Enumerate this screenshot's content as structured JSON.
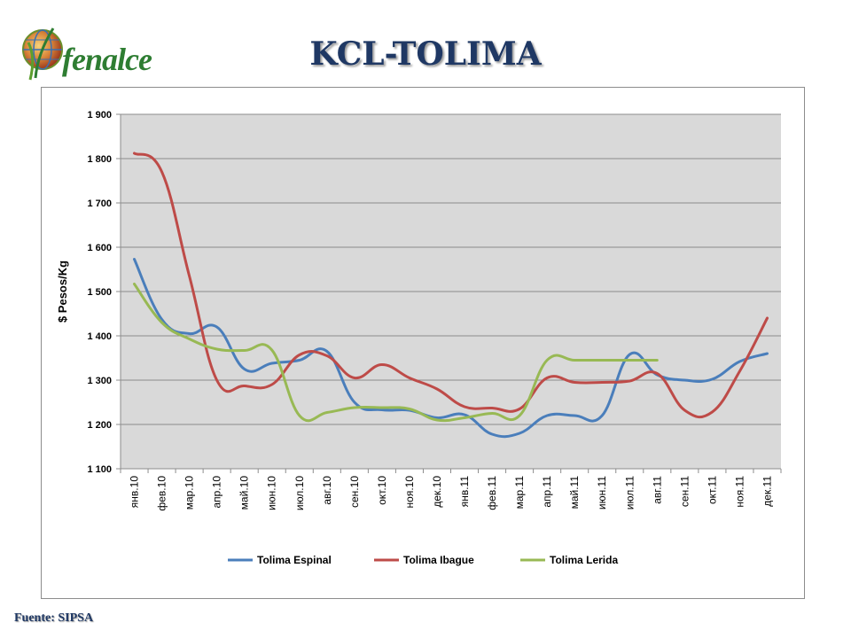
{
  "logo": {
    "text": "fenalce"
  },
  "title": "KCL-TOLIMA",
  "footer": "Fuente: SIPSA",
  "chart_data": {
    "type": "line",
    "ylabel": "$ Pesos/Kg",
    "xlabel": "",
    "ylim": [
      1100,
      1900
    ],
    "yticks": [
      1100,
      1200,
      1300,
      1400,
      1500,
      1600,
      1700,
      1800,
      1900
    ],
    "ytick_labels": [
      "1 100",
      "1 200",
      "1 300",
      "1 400",
      "1 500",
      "1 600",
      "1 700",
      "1 800",
      "1 900"
    ],
    "categories": [
      "янв.10",
      "фев.10",
      "мар.10",
      "апр.10",
      "май.10",
      "июн.10",
      "июл.10",
      "авг.10",
      "сен.10",
      "окт.10",
      "ноя.10",
      "дек.10",
      "янв.11",
      "фев.11",
      "мар.11",
      "апр.11",
      "май.11",
      "июн.11",
      "июл.11",
      "авг.11",
      "сен.11",
      "окт.11",
      "ноя.11",
      "дек.11"
    ],
    "grid": true,
    "legend": "bottom",
    "colors": {
      "plot_bg": "#d9d9d9",
      "grid": "#8c8c8c"
    },
    "series": [
      {
        "name": "Tolima Espinal",
        "color": "#4a7ebb",
        "values": [
          1573,
          1437,
          1405,
          1420,
          1325,
          1338,
          1345,
          1365,
          1250,
          1233,
          1232,
          1215,
          1222,
          1178,
          1180,
          1220,
          1220,
          1220,
          1358,
          1312,
          1300,
          1302,
          1342,
          1360
        ]
      },
      {
        "name": "Tolima Ibague",
        "color": "#be4b48",
        "values": [
          1812,
          1770,
          1535,
          1300,
          1287,
          1290,
          1357,
          1355,
          1305,
          1335,
          1305,
          1280,
          1240,
          1237,
          1235,
          1305,
          1295,
          1295,
          1298,
          1315,
          1232,
          1228,
          1320,
          1440
        ]
      },
      {
        "name": "Tolima Lerida",
        "color": "#98b954",
        "values": [
          1517,
          1430,
          1393,
          1370,
          1367,
          1368,
          1220,
          1227,
          1238,
          1238,
          1235,
          1210,
          1215,
          1225,
          1220,
          1345,
          1345,
          1345,
          1345,
          1345,
          null,
          null,
          null,
          null
        ]
      }
    ]
  }
}
